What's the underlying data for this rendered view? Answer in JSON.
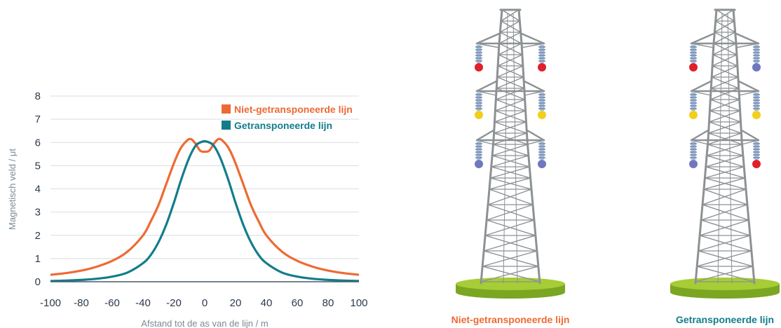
{
  "chart_data": {
    "type": "line",
    "title": "",
    "xlabel": "Afstand tot de as van de lijn / m",
    "ylabel": "Magnetisch veld / μt",
    "xlim": [
      -100,
      100
    ],
    "ylim": [
      0,
      8
    ],
    "x_ticks": [
      -100,
      -80,
      -60,
      -40,
      -20,
      0,
      20,
      40,
      60,
      80,
      100
    ],
    "y_ticks": [
      0,
      1,
      2,
      3,
      4,
      5,
      6,
      7,
      8
    ],
    "grid": "horizontal",
    "legend_position": "top-right",
    "series": [
      {
        "name": "Niet-getransponeerde lijn",
        "color": "#ee6a33",
        "x": [
          -100,
          -90,
          -80,
          -70,
          -60,
          -50,
          -40,
          -35,
          -30,
          -25,
          -20,
          -16,
          -12,
          -9,
          -6,
          -3,
          0,
          3,
          6,
          9,
          12,
          16,
          20,
          25,
          30,
          35,
          40,
          50,
          60,
          70,
          80,
          90,
          100
        ],
        "y": [
          0.3,
          0.37,
          0.48,
          0.65,
          0.9,
          1.3,
          2.0,
          2.6,
          3.3,
          4.2,
          5.1,
          5.7,
          6.05,
          6.15,
          5.95,
          5.65,
          5.6,
          5.65,
          5.95,
          6.15,
          6.05,
          5.7,
          5.1,
          4.2,
          3.3,
          2.6,
          2.0,
          1.3,
          0.9,
          0.65,
          0.48,
          0.37,
          0.3
        ]
      },
      {
        "name": "Getransponeerde lijn",
        "color": "#137d8a",
        "x": [
          -100,
          -90,
          -80,
          -70,
          -60,
          -50,
          -40,
          -35,
          -30,
          -25,
          -20,
          -15,
          -10,
          -6,
          -3,
          0,
          3,
          6,
          10,
          15,
          20,
          25,
          30,
          35,
          40,
          50,
          60,
          70,
          80,
          90,
          100
        ],
        "y": [
          0.03,
          0.05,
          0.08,
          0.13,
          0.22,
          0.4,
          0.8,
          1.15,
          1.7,
          2.45,
          3.4,
          4.45,
          5.35,
          5.85,
          6.0,
          6.05,
          6.0,
          5.85,
          5.35,
          4.45,
          3.4,
          2.45,
          1.7,
          1.15,
          0.8,
          0.4,
          0.22,
          0.13,
          0.08,
          0.05,
          0.03
        ]
      }
    ]
  },
  "towers": [
    {
      "label": "Niet-getransponeerde lijn",
      "label_color": "#ee6a33",
      "phases_left": [
        "red",
        "yellow",
        "blue"
      ],
      "phases_right": [
        "red",
        "yellow",
        "blue"
      ]
    },
    {
      "label": "Getransponeerde lijn",
      "label_color": "#137d8a",
      "phases_left": [
        "red",
        "yellow",
        "blue"
      ],
      "phases_right": [
        "blue",
        "yellow",
        "red"
      ]
    }
  ],
  "phase_colors": {
    "red": "#e0202a",
    "yellow": "#f2cf1c",
    "blue": "#6f78bd"
  },
  "colors": {
    "grid": "#d8dde2",
    "axis": "#4a5a66",
    "tower_steel": "#8c9194",
    "base_top": "#a6cd35",
    "base_side": "#7aa622"
  }
}
